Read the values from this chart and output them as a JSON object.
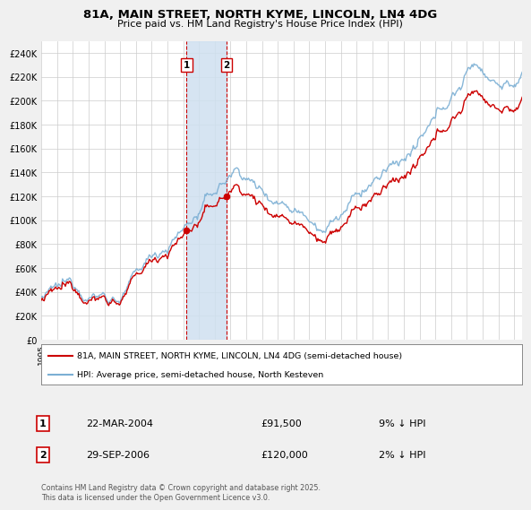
{
  "title_line1": "81A, MAIN STREET, NORTH KYME, LINCOLN, LN4 4DG",
  "title_line2": "Price paid vs. HM Land Registry's House Price Index (HPI)",
  "ylim": [
    0,
    250000
  ],
  "yticks": [
    0,
    20000,
    40000,
    60000,
    80000,
    100000,
    120000,
    140000,
    160000,
    180000,
    200000,
    220000,
    240000
  ],
  "ytick_labels": [
    "£0",
    "£20K",
    "£40K",
    "£60K",
    "£80K",
    "£100K",
    "£120K",
    "£140K",
    "£160K",
    "£180K",
    "£200K",
    "£220K",
    "£240K"
  ],
  "hpi_color": "#7BAFD4",
  "price_color": "#CC0000",
  "transaction1_date": 2004.22,
  "transaction1_price": 91500,
  "transaction2_date": 2006.75,
  "transaction2_price": 120000,
  "legend_line1": "81A, MAIN STREET, NORTH KYME, LINCOLN, LN4 4DG (semi-detached house)",
  "legend_line2": "HPI: Average price, semi-detached house, North Kesteven",
  "annotation1": [
    "1",
    "22-MAR-2004",
    "£91,500",
    "9% ↓ HPI"
  ],
  "annotation2": [
    "2",
    "29-SEP-2006",
    "£120,000",
    "2% ↓ HPI"
  ],
  "footer": "Contains HM Land Registry data © Crown copyright and database right 2025.\nThis data is licensed under the Open Government Licence v3.0.",
  "bg_color": "#f0f0f0",
  "plot_bg_color": "#ffffff"
}
